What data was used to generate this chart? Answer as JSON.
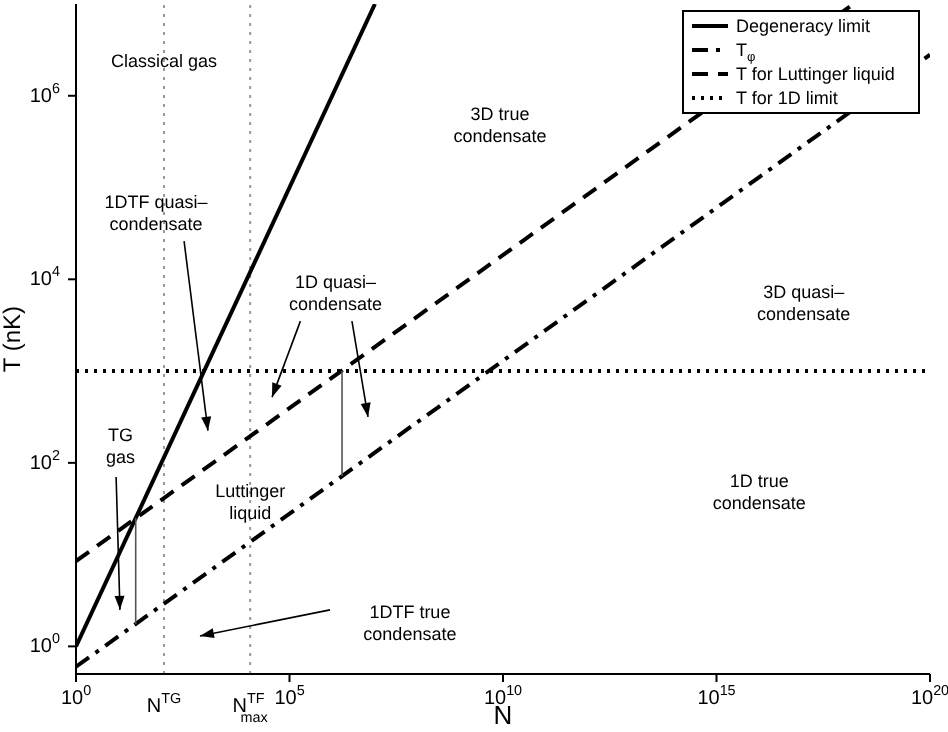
{
  "chart_data": {
    "type": "line",
    "xlabel": "N",
    "ylabel": "T (nK)",
    "log": "xy",
    "grid": false,
    "marker": "none",
    "legend": "top right",
    "xlim": [
      1,
      1e+20
    ],
    "ylim": [
      0.5,
      10000000.0
    ],
    "xticks": [
      {
        "value": 1,
        "label": "10$^{0}$"
      },
      {
        "value": 100000.0,
        "label": "10$^{5}$"
      },
      {
        "value": 10000000000.0,
        "label": "10$^{10}$"
      },
      {
        "value": 1000000000000000.0,
        "label": "10$^{15}$"
      },
      {
        "value": 1e+20,
        "label": "10$^{20}$"
      }
    ],
    "yticks": [
      {
        "value": 1,
        "label": "10$^{0}$"
      },
      {
        "value": 100,
        "label": "10$^{2}$"
      },
      {
        "value": 10000,
        "label": "10$^{4}$"
      },
      {
        "value": 1000000,
        "label": "10$^{6}$"
      }
    ],
    "series": [
      {
        "name": "Degeneracy limit",
        "color": "#000000",
        "line_style": "solid",
        "x": [
          1,
          10000000.0
        ],
        "values": [
          1,
          10000000.0
        ]
      },
      {
        "name": "T$_{φ}$",
        "color": "#000000",
        "line_style": "dashdot",
        "x": [
          1,
          1e+20
        ],
        "values": [
          0.6,
          2800000.0
        ]
      },
      {
        "name": "T for Luttinger liquid",
        "color": "#000000",
        "line_style": "dashed",
        "x": [
          1,
          1.6e+18
        ],
        "values": [
          8.5,
          10000000.0
        ]
      },
      {
        "name": "T for 1D limit",
        "color": "#000000",
        "line_style": "dotted",
        "x": [
          1,
          1e+20
        ],
        "values": [
          1000,
          1000
        ]
      },
      {
        "color": "#555555",
        "line_style": "solid",
        "x": [
          25,
          25
        ],
        "values": [
          1.75,
          25
        ]
      },
      {
        "color": "#555555",
        "line_style": "solid",
        "x": [
          1700000.0,
          1700000.0
        ],
        "values": [
          72,
          1000
        ]
      }
    ],
    "ref_lines": [
      {
        "axis": "x",
        "value": 115,
        "label": "N$^{TG}$",
        "color": "#999999",
        "line_style": "dotted"
      },
      {
        "axis": "x",
        "value": 12000,
        "label": "N$^{TF}$$_{max}$",
        "color": "#999999",
        "line_style": "dotted"
      }
    ],
    "annotations": [
      "Classical gas",
      "3D true\ncondensate",
      "1DTF quasi–\ncondensate",
      "1D quasi–\ncondensate",
      "3D quasi–\ncondensate",
      "TG\ngas",
      "Luttinger\nliquid",
      "1D true\ncondensate",
      "1DTF true\ncondensate"
    ]
  }
}
